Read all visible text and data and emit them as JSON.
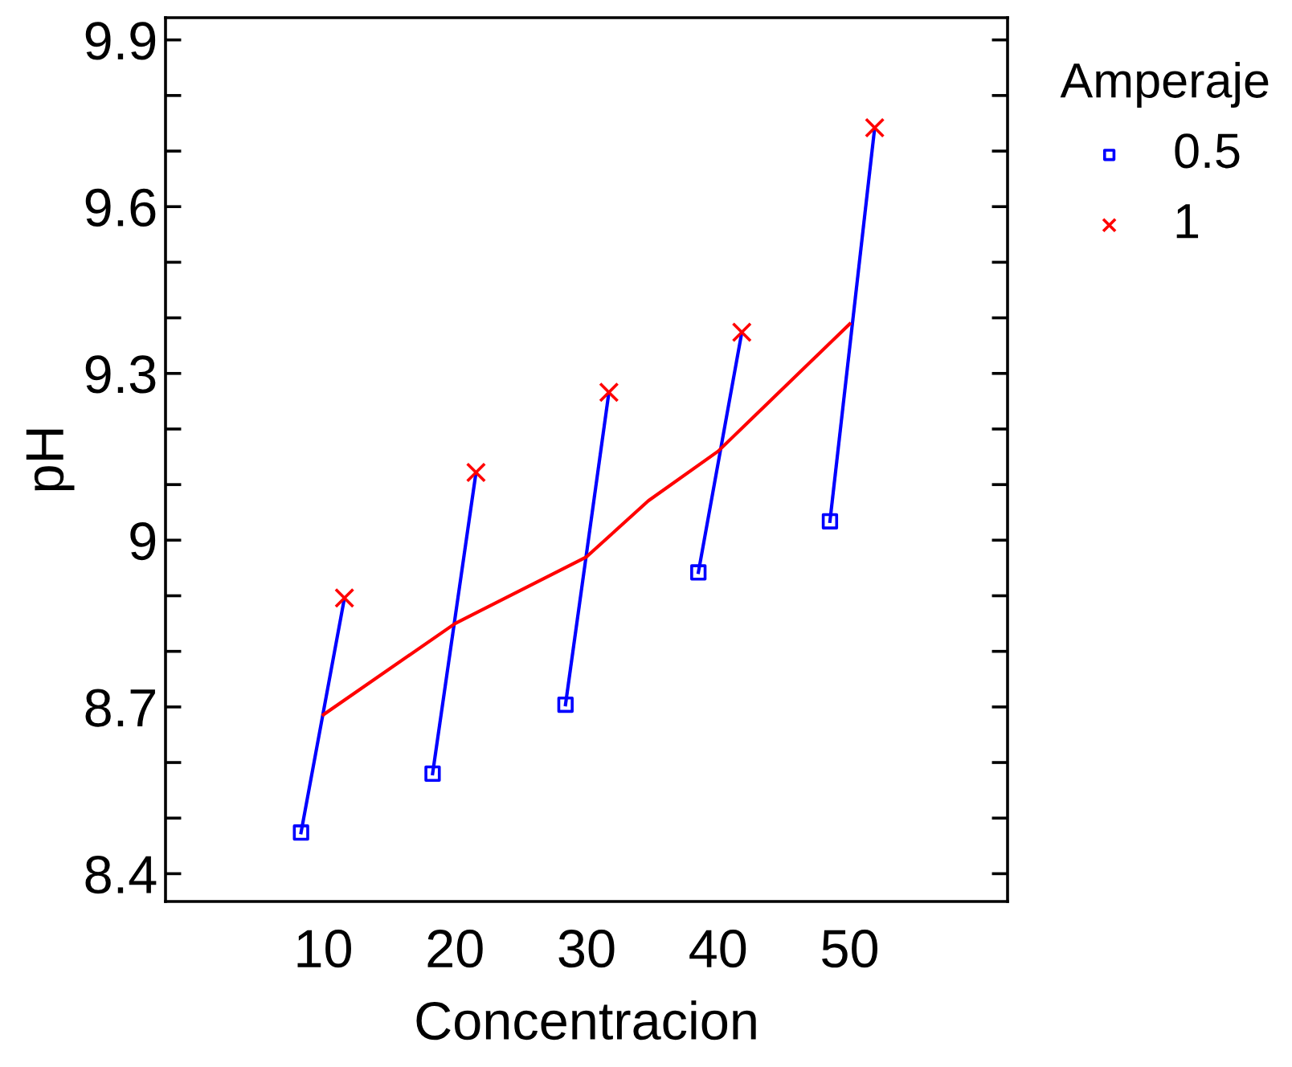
{
  "chart_data": {
    "type": "line",
    "xlabel": "Concentracion",
    "ylabel": "pH",
    "legend_title": "Amperaje",
    "legend": "top right",
    "xlim": [
      -2,
      62
    ],
    "xticks": [
      10,
      20,
      30,
      40,
      50
    ],
    "ylim": [
      8.35,
      9.94
    ],
    "yticks": [
      8.4,
      {
        "value": 8.5,
        "label": null
      },
      {
        "value": 8.6,
        "label": null
      },
      8.7,
      {
        "value": 8.8,
        "label": null
      },
      {
        "value": 8.9,
        "label": null
      },
      9,
      {
        "value": 9.1,
        "label": null
      },
      {
        "value": 9.2,
        "label": null
      },
      9.3,
      {
        "value": 9.4,
        "label": null
      },
      {
        "value": 9.5,
        "label": null
      },
      9.6,
      {
        "value": 9.7,
        "label": null
      },
      {
        "value": 9.8,
        "label": null
      },
      9.9
    ],
    "series": [
      {
        "color": "#0000ff",
        "marker": "none",
        "x": [
          8.3,
          11.6
        ],
        "values": [
          8.474,
          8.896
        ]
      },
      {
        "color": "#0000ff",
        "marker": "none",
        "x": [
          18.3,
          21.6
        ],
        "values": [
          8.58,
          9.122
        ]
      },
      {
        "color": "#0000ff",
        "marker": "none",
        "x": [
          28.4,
          31.7
        ],
        "values": [
          8.704,
          9.266
        ]
      },
      {
        "color": "#0000ff",
        "marker": "none",
        "x": [
          38.5,
          41.8
        ],
        "values": [
          8.942,
          9.374
        ]
      },
      {
        "color": "#0000ff",
        "marker": "none",
        "x": [
          48.5,
          51.9
        ],
        "values": [
          9.034,
          9.742
        ]
      },
      {
        "color": "#ff0000",
        "marker": "none",
        "x": [
          10,
          20,
          30,
          34.7,
          40,
          50
        ],
        "values": [
          8.686,
          8.85,
          8.97,
          9.071,
          9.16,
          9.389
        ]
      },
      {
        "type": "scatter",
        "name": "0.5",
        "color": "#0000ff",
        "marker": "square",
        "x": [
          8.3,
          18.3,
          28.4,
          38.5,
          48.5
        ],
        "values": [
          8.474,
          8.58,
          8.704,
          8.942,
          9.034
        ]
      },
      {
        "type": "scatter",
        "name": "1",
        "color": "#ff0000",
        "marker": "cross",
        "x": [
          11.6,
          21.6,
          31.7,
          41.8,
          51.9
        ],
        "values": [
          8.896,
          9.122,
          9.266,
          9.374,
          9.742
        ]
      }
    ]
  }
}
